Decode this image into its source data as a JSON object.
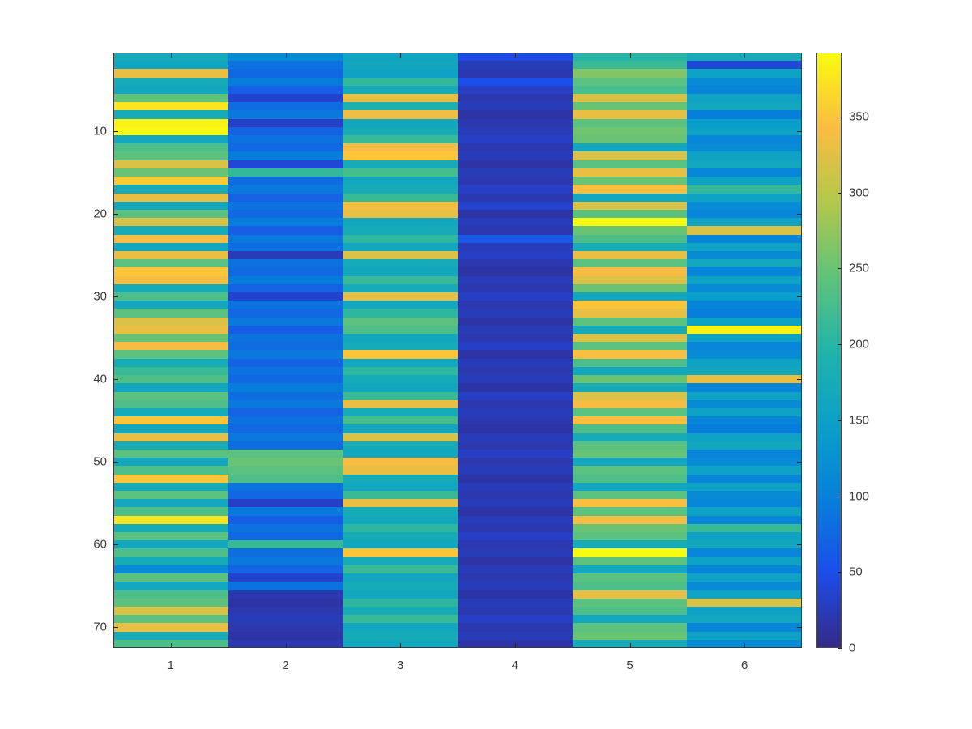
{
  "chart_data": {
    "type": "heatmap",
    "title": "",
    "xlabel": "",
    "ylabel": "",
    "n_rows": 72,
    "n_cols": 6,
    "vmin": 0,
    "vmax": 392,
    "x_ticks": [
      1,
      2,
      3,
      4,
      5,
      6
    ],
    "y_ticks": [
      10,
      20,
      30,
      40,
      50,
      60,
      70
    ],
    "colorbar_ticks": [
      0,
      50,
      100,
      150,
      200,
      250,
      300,
      350
    ],
    "colormap": "parula",
    "colormap_stops": [
      [
        0.0,
        [
          53,
          42,
          135
        ]
      ],
      [
        0.125,
        [
          28,
          77,
          235
        ]
      ],
      [
        0.25,
        [
          6,
          128,
          218
        ]
      ],
      [
        0.375,
        [
          10,
          160,
          201
        ]
      ],
      [
        0.5,
        [
          33,
          180,
          170
        ]
      ],
      [
        0.625,
        [
          96,
          195,
          121
        ]
      ],
      [
        0.75,
        [
          179,
          200,
          74
        ]
      ],
      [
        0.875,
        [
          251,
          188,
          65
        ]
      ],
      [
        1.0,
        [
          249,
          251,
          14
        ]
      ]
    ],
    "values": [
      [
        170,
        115,
        160,
        45,
        200,
        175
      ],
      [
        160,
        85,
        165,
        25,
        215,
        40
      ],
      [
        330,
        75,
        155,
        20,
        265,
        155
      ],
      [
        175,
        95,
        210,
        50,
        240,
        115
      ],
      [
        165,
        65,
        175,
        30,
        225,
        105
      ],
      [
        245,
        35,
        330,
        20,
        320,
        155
      ],
      [
        375,
        80,
        185,
        25,
        250,
        165
      ],
      [
        175,
        90,
        335,
        15,
        330,
        95
      ],
      [
        385,
        30,
        165,
        20,
        240,
        145
      ],
      [
        390,
        70,
        175,
        25,
        255,
        155
      ],
      [
        165,
        85,
        215,
        30,
        250,
        105
      ],
      [
        230,
        75,
        340,
        20,
        165,
        115
      ],
      [
        240,
        95,
        350,
        25,
        320,
        155
      ],
      [
        320,
        40,
        175,
        15,
        240,
        165
      ],
      [
        250,
        210,
        225,
        25,
        330,
        105
      ],
      [
        355,
        80,
        165,
        20,
        250,
        155
      ],
      [
        175,
        90,
        175,
        30,
        345,
        210
      ],
      [
        330,
        70,
        215,
        20,
        165,
        155
      ],
      [
        165,
        85,
        340,
        35,
        320,
        115
      ],
      [
        240,
        75,
        330,
        15,
        240,
        105
      ],
      [
        320,
        95,
        165,
        25,
        392,
        155
      ],
      [
        175,
        65,
        175,
        20,
        250,
        320
      ],
      [
        340,
        90,
        205,
        60,
        230,
        105
      ],
      [
        165,
        80,
        165,
        25,
        175,
        155
      ],
      [
        330,
        25,
        320,
        30,
        330,
        115
      ],
      [
        240,
        85,
        175,
        20,
        240,
        165
      ],
      [
        350,
        75,
        165,
        15,
        340,
        105
      ],
      [
        340,
        95,
        215,
        25,
        320,
        155
      ],
      [
        175,
        70,
        175,
        20,
        250,
        115
      ],
      [
        230,
        35,
        330,
        30,
        165,
        145
      ],
      [
        165,
        85,
        165,
        20,
        350,
        105
      ],
      [
        240,
        75,
        205,
        25,
        330,
        95
      ],
      [
        320,
        90,
        240,
        15,
        240,
        155
      ],
      [
        330,
        65,
        230,
        25,
        175,
        385
      ],
      [
        250,
        85,
        165,
        20,
        320,
        155
      ],
      [
        340,
        80,
        175,
        30,
        240,
        105
      ],
      [
        240,
        90,
        350,
        15,
        345,
        115
      ],
      [
        175,
        70,
        165,
        25,
        230,
        155
      ],
      [
        215,
        85,
        205,
        20,
        165,
        165
      ],
      [
        230,
        75,
        175,
        25,
        250,
        330
      ],
      [
        165,
        95,
        165,
        15,
        175,
        105
      ],
      [
        240,
        80,
        215,
        30,
        320,
        155
      ],
      [
        230,
        90,
        330,
        20,
        340,
        115
      ],
      [
        175,
        70,
        175,
        25,
        240,
        155
      ],
      [
        350,
        85,
        225,
        20,
        345,
        105
      ],
      [
        165,
        75,
        165,
        15,
        230,
        95
      ],
      [
        330,
        90,
        320,
        25,
        175,
        155
      ],
      [
        175,
        80,
        175,
        20,
        240,
        165
      ],
      [
        240,
        240,
        165,
        30,
        250,
        105
      ],
      [
        165,
        250,
        340,
        20,
        165,
        115
      ],
      [
        230,
        240,
        330,
        25,
        240,
        155
      ],
      [
        350,
        230,
        175,
        15,
        230,
        105
      ],
      [
        175,
        85,
        165,
        25,
        165,
        155
      ],
      [
        240,
        75,
        215,
        20,
        240,
        115
      ],
      [
        165,
        30,
        330,
        25,
        345,
        105
      ],
      [
        230,
        90,
        175,
        15,
        240,
        155
      ],
      [
        375,
        65,
        165,
        25,
        340,
        105
      ],
      [
        175,
        85,
        205,
        20,
        250,
        215
      ],
      [
        240,
        75,
        175,
        30,
        240,
        155
      ],
      [
        165,
        215,
        165,
        20,
        175,
        165
      ],
      [
        230,
        80,
        350,
        25,
        392,
        105
      ],
      [
        175,
        90,
        175,
        15,
        240,
        155
      ],
      [
        115,
        70,
        215,
        25,
        165,
        105
      ],
      [
        240,
        35,
        165,
        20,
        240,
        155
      ],
      [
        165,
        85,
        175,
        25,
        230,
        115
      ],
      [
        230,
        20,
        165,
        15,
        330,
        155
      ],
      [
        240,
        15,
        205,
        25,
        240,
        320
      ],
      [
        320,
        20,
        175,
        20,
        230,
        155
      ],
      [
        240,
        25,
        215,
        30,
        165,
        165
      ],
      [
        330,
        20,
        165,
        20,
        240,
        105
      ],
      [
        175,
        15,
        175,
        25,
        250,
        155
      ],
      [
        230,
        20,
        165,
        15,
        175,
        115
      ]
    ]
  },
  "colors": {
    "background": "#ffffff",
    "tick_label": "#3c3c3c",
    "axis": "#262626"
  }
}
